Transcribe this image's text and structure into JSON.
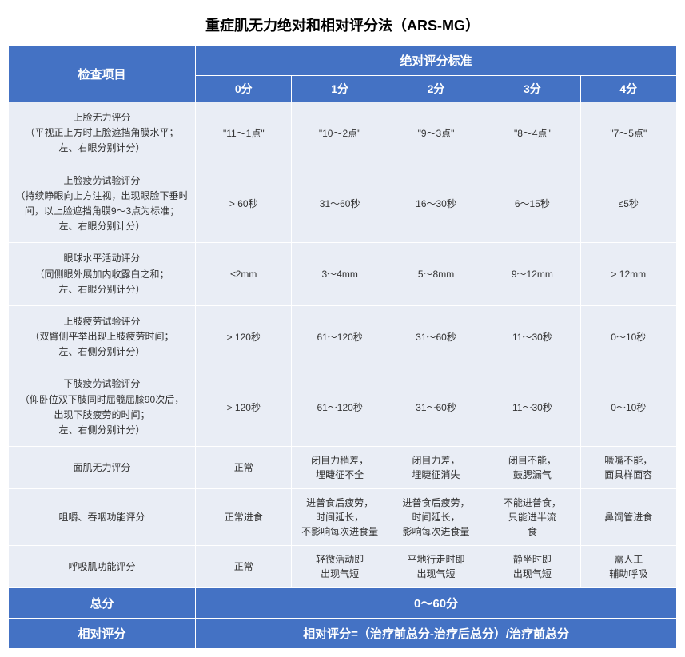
{
  "title": "重症肌无力绝对和相对评分法（ARS-MG）",
  "header": {
    "examItem": "检查项目",
    "criteria": "绝对评分标准",
    "scores": [
      "0分",
      "1分",
      "2分",
      "3分",
      "4分"
    ]
  },
  "rows": [
    {
      "name": "上脸无力评分\n（平视正上方时上脸遮挡角膜水平；\n左、右眼分别计分）",
      "cells": [
        "\"11～1点\"",
        "\"10～2点\"",
        "\"9～3点\"",
        "\"8～4点\"",
        "\"7～5点\""
      ]
    },
    {
      "name": "上脸疲劳试验评分\n（持续睁眼向上方注视，出现眼脸下垂时\n间，以上脸遮挡角膜9～3点为标准；\n左、右眼分别计分）",
      "cells": [
        "> 60秒",
        "31～60秒",
        "16～30秒",
        "6～15秒",
        "≤5秒"
      ]
    },
    {
      "name": "眼球水平活动评分\n（同侧眼外展加内收露白之和；\n左、右眼分别计分）",
      "cells": [
        "≤2mm",
        "3～4mm",
        "5～8mm",
        "9～12mm",
        "> 12mm"
      ]
    },
    {
      "name": "上肢疲劳试验评分\n（双臂侧平举出现上肢疲劳时间；\n左、右侧分别计分）",
      "cells": [
        "> 120秒",
        "61～120秒",
        "31～60秒",
        "11～30秒",
        "0～10秒"
      ]
    },
    {
      "name": "下肢疲劳试验评分\n（仰卧位双下肢同时屈髋屈膝90次后，\n出现下肢疲劳的时间；\n左、右侧分别计分）",
      "cells": [
        "> 120秒",
        "61～120秒",
        "31～60秒",
        "11～30秒",
        "0～10秒"
      ]
    },
    {
      "name": "面肌无力评分",
      "cells": [
        "正常",
        "闭目力稍差，\n埋睫征不全",
        "闭目力差，\n埋睫征消失",
        "闭目不能，\n鼓腮漏气",
        "噘嘴不能，\n面具样面容"
      ]
    },
    {
      "name": "咀嚼、吞咽功能评分",
      "cells": [
        "正常进食",
        "进普食后疲劳，\n时间延长，\n不影响每次进食量",
        "进普食后疲劳，\n时间延长，\n影响每次进食量",
        "不能进普食，\n只能进半流\n食",
        "鼻饲管进食"
      ]
    },
    {
      "name": "呼吸肌功能评分",
      "cells": [
        "正常",
        "轻微活动即\n出现气短",
        "平地行走时即\n出现气短",
        "静坐时即\n出现气短",
        "需人工\n辅助呼吸"
      ]
    }
  ],
  "footer": {
    "totalLabel": "总分",
    "totalValue": "0～60分",
    "relativeLabel": "相对评分",
    "relativeValue": "相对评分=（治疗前总分-治疗后总分）/治疗前总分"
  },
  "colors": {
    "headerBg": "#4472c4",
    "headerText": "#ffffff",
    "dataBg": "#e9edf5",
    "dataText": "#333333",
    "border": "#ffffff"
  }
}
